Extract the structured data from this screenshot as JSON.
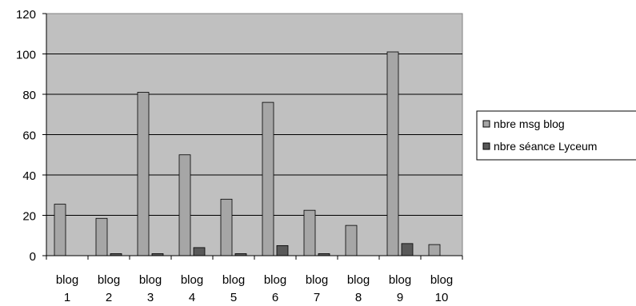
{
  "chart_data": {
    "type": "bar",
    "categories": [
      [
        "blog",
        "1"
      ],
      [
        "blog",
        "2"
      ],
      [
        "blog",
        "3"
      ],
      [
        "blog",
        "4"
      ],
      [
        "blog",
        "5"
      ],
      [
        "blog",
        "6"
      ],
      [
        "blog",
        "7"
      ],
      [
        "blog",
        "8"
      ],
      [
        "blog",
        "9"
      ],
      [
        "blog",
        "10"
      ]
    ],
    "series": [
      {
        "name": "nbre msg blog",
        "values": [
          25.5,
          18.5,
          81,
          50,
          28,
          76,
          22.5,
          15,
          101,
          5.5
        ],
        "color": "#a6a6a6"
      },
      {
        "name": "nbre séance Lyceum",
        "values": [
          0,
          1,
          1,
          4,
          1,
          5,
          1,
          0,
          6,
          0
        ],
        "color": "#595959"
      }
    ],
    "yticks": [
      "0",
      "20",
      "40",
      "60",
      "80",
      "100",
      "120"
    ],
    "ylim": [
      0,
      120
    ],
    "grid": true,
    "legend": "right",
    "plot_background": "#c0c0c0"
  }
}
